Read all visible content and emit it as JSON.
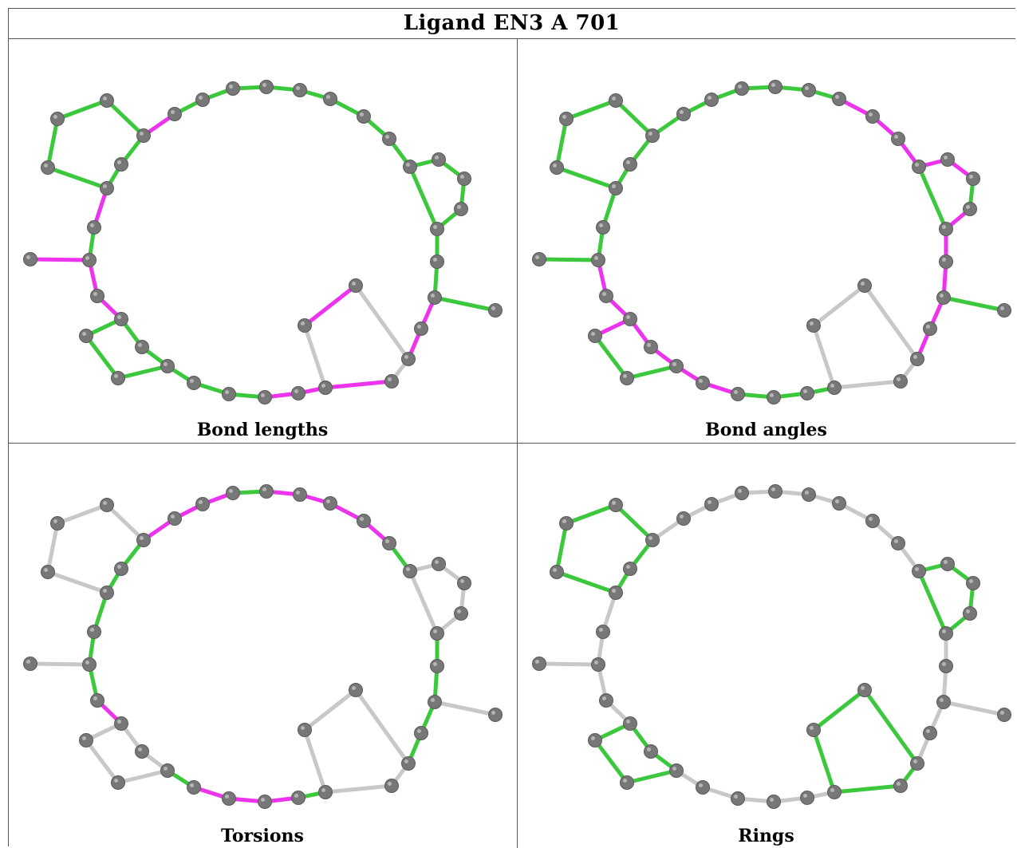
{
  "title": "Ligand EN3 A 701",
  "colors": {
    "good": "#3cc83c",
    "outlier": "#ee33ee",
    "neutral": "#c8c8c8",
    "atom": "#777777"
  },
  "panels": [
    {
      "caption": "Bond lengths"
    },
    {
      "caption": "Bond angles"
    },
    {
      "caption": "Torsions"
    },
    {
      "caption": "Rings"
    }
  ]
}
